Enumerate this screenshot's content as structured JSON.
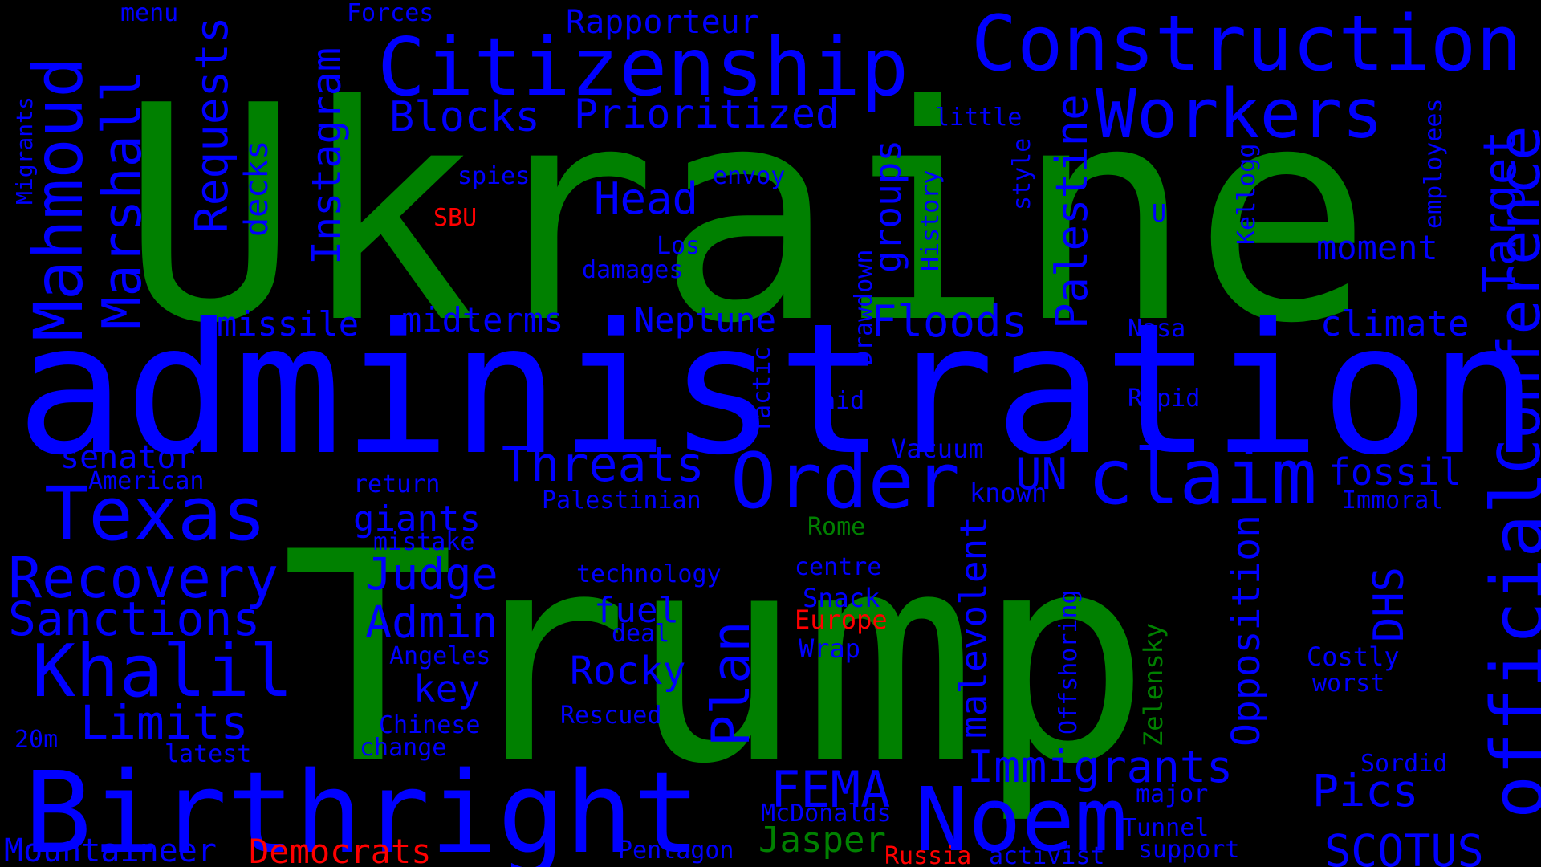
{
  "colors": {
    "background": "#000000",
    "blue": "#0000FF",
    "green": "#008000",
    "red": "#FF0000"
  },
  "words": {
    "trump": "Trump",
    "ukraine": "Ukraine",
    "administration": "administration",
    "birthright": "Birthright",
    "citizenship": "Citizenship",
    "construction": "Construction",
    "workers": "Workers",
    "mahmoud": "Mahmoud",
    "marshall": "Marshall",
    "texas": "Texas",
    "khalil": "Khalil",
    "recovery": "Recovery",
    "sanctions": "Sanctions",
    "limits": "Limits",
    "mountaineer": "Mountaineer",
    "democrats": "Democrats",
    "noem": "Noem",
    "order": "Order",
    "claim": "claim",
    "official": "official",
    "conference": "Conference",
    "threats": "Threats",
    "fema": "FEMA",
    "scotus": "SCOTUS",
    "immigrants": "Immigrants",
    "pics": "Pics",
    "plan": "Plan",
    "judge": "Judge",
    "admin": "Admin",
    "rocky": "Rocky",
    "key": "key",
    "giants": "giants",
    "floods": "Floods",
    "neptune": "Neptune",
    "midterms": "midterms",
    "missile": "missile",
    "blocks": "Blocks",
    "prioritized": "Prioritized",
    "head": "Head",
    "requests": "Requests",
    "instagram": "Instagram",
    "palestine": "Palestine",
    "target": "Target",
    "groups": "groups",
    "moment": "moment",
    "climate": "climate",
    "fossil": "fossil",
    "un": "UN",
    "opposition": "Opposition",
    "malevolent": "malevolent",
    "dhs": "DHS",
    "jasper": "Jasper",
    "senator": "senator",
    "fuel": "fuel",
    "decks": "decks",
    "rapporteur": "Rapporteur",
    "forces": "Forces",
    "menu": "menu",
    "migrants": "Migrants",
    "spies": "spies",
    "sbu": "SBU",
    "envoy": "envoy",
    "los": "Los",
    "damages": "damages",
    "little": "little",
    "history": "History",
    "style": "style",
    "u": "U",
    "kellogg": "Kellogg",
    "employees": "employees",
    "drawdown": "Drawdown",
    "tactic": "Tactic",
    "aid": "aid",
    "nasa": "Nasa",
    "rapid": "Rapid",
    "vacuum": "Vacuum",
    "known": "known",
    "american": "American",
    "return": "return",
    "palestinian": "Palestinian",
    "immoral": "Immoral",
    "rome": "Rome",
    "mistake": "mistake",
    "technology": "technology",
    "centre": "centre",
    "snack": "Snack",
    "europe": "Europe",
    "deal": "deal",
    "angeles": "Angeles",
    "wrap": "Wrap",
    "costly": "Costly",
    "worst": "worst",
    "offshoring": "Offshoring",
    "zelensky": "Zelensky",
    "rescued": "Rescued",
    "chinese": "Chinese",
    "change": "change",
    "twenty_m": "20m",
    "latest": "latest",
    "sordid": "Sordid",
    "major": "major",
    "mcdonalds": "McDonalds",
    "tunnel": "Tunnel",
    "support": "support",
    "activist": "activist",
    "russia": "Russia",
    "pentagon": "Pentagon"
  }
}
